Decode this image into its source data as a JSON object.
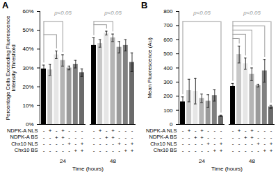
{
  "chart_data": [
    {
      "type": "bar",
      "title": "A",
      "ylabel": "Percentage Cells Exceeding Fluorescence Intensity Threshold",
      "xlabel": "Time (hours)",
      "categories": [
        "24",
        "48"
      ],
      "ylim": [
        0,
        60
      ],
      "yticks": [
        {
          "value": 0,
          "label": "0%"
        },
        {
          "value": 10,
          "label": "10%"
        },
        {
          "value": 20,
          "label": "20%"
        },
        {
          "value": 30,
          "label": "30%"
        },
        {
          "value": 40,
          "label": "40%"
        },
        {
          "value": 50,
          "label": "50%"
        },
        {
          "value": 60,
          "label": "60%"
        }
      ],
      "series": [
        {
          "color": "#000000",
          "values": [
            29.5,
            42
          ],
          "errors": [
            2,
            4
          ]
        },
        {
          "color": "#c8c8c8",
          "values": [
            29,
            43
          ],
          "errors": [
            3,
            2
          ]
        },
        {
          "color": "#e6e6e6",
          "values": [
            37,
            48.5
          ],
          "errors": [
            2,
            1
          ]
        },
        {
          "color": "#b4b4b4",
          "values": [
            34,
            46
          ],
          "errors": [
            3,
            2
          ]
        },
        {
          "color": "#9a9a9a",
          "values": [
            30,
            41
          ],
          "errors": [
            1,
            3
          ]
        },
        {
          "color": "#808080",
          "values": [
            32,
            42
          ],
          "errors": [
            2,
            3
          ]
        },
        {
          "color": "#6a6a6a",
          "values": [
            27.5,
            33
          ],
          "errors": [
            2,
            5
          ]
        }
      ],
      "conditions": [
        {
          "label": "NDPK-A NLS",
          "marks": [
            "-",
            "+",
            "-",
            "+",
            "-",
            "-",
            "-"
          ]
        },
        {
          "label": "NDPK-A BS",
          "marks": [
            "-",
            "-",
            "+",
            "+",
            "-",
            "-",
            "-"
          ]
        },
        {
          "label": "Chx10 NLS",
          "marks": [
            "-",
            "-",
            "-",
            "-",
            "+",
            "-",
            "+"
          ]
        },
        {
          "label": "Chx10 BS",
          "marks": [
            "-",
            "-",
            "-",
            "-",
            "-",
            "+",
            "+"
          ]
        }
      ],
      "annotations": [
        {
          "group": "24",
          "text": "p<0.05",
          "from": 0,
          "to": [
            2,
            3
          ]
        },
        {
          "group": "48",
          "text": "p<0.05",
          "from": 0,
          "to": [
            2,
            3
          ]
        }
      ]
    },
    {
      "type": "bar",
      "title": "B",
      "ylabel": "Mean Fluorescence (Au)",
      "xlabel": "Time (hours)",
      "categories": [
        "24",
        "48"
      ],
      "ylim": [
        0,
        800
      ],
      "yticks": [
        0,
        100,
        200,
        300,
        400,
        500,
        600,
        700,
        800
      ],
      "series": [
        {
          "color": "#000000",
          "values": [
            160,
            270
          ],
          "errors": [
            35,
            20
          ]
        },
        {
          "color": "#c8c8c8",
          "values": [
            240,
            495
          ],
          "errors": [
            80,
            60
          ]
        },
        {
          "color": "#e6e6e6",
          "values": [
            235,
            430
          ],
          "errors": [
            90,
            40
          ]
        },
        {
          "color": "#b4b4b4",
          "values": [
            185,
            355
          ],
          "errors": [
            30,
            45
          ]
        },
        {
          "color": "#9a9a9a",
          "values": [
            165,
            275
          ],
          "errors": [
            45,
            10
          ]
        },
        {
          "color": "#808080",
          "values": [
            205,
            380
          ],
          "errors": [
            40,
            80
          ]
        },
        {
          "color": "#6a6a6a",
          "values": [
            60,
            125
          ],
          "errors": [
            5,
            10
          ]
        }
      ],
      "conditions": [
        {
          "label": "NDPK-A NLS",
          "marks": [
            "-",
            "+",
            "-",
            "+",
            "-",
            "-",
            "-"
          ]
        },
        {
          "label": "NDPK-A BS",
          "marks": [
            "-",
            "-",
            "+",
            "+",
            "-",
            "-",
            "-"
          ]
        },
        {
          "label": "Chx10 NLS",
          "marks": [
            "-",
            "-",
            "-",
            "-",
            "+",
            "-",
            "+"
          ]
        },
        {
          "label": "Chx10 BS",
          "marks": [
            "-",
            "-",
            "-",
            "-",
            "-",
            "+",
            "+"
          ]
        }
      ],
      "annotations": [
        {
          "group": "24",
          "text": "p<0.05",
          "from": 0,
          "to": [
            6
          ]
        },
        {
          "group": "48",
          "text": "p<0.05",
          "from": 0,
          "to": [
            1,
            2,
            3,
            5,
            6
          ]
        }
      ]
    }
  ]
}
